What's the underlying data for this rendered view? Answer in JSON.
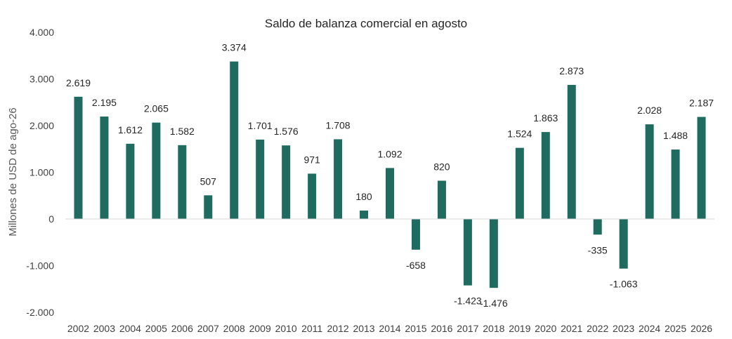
{
  "chart_data": {
    "type": "bar",
    "title": "Saldo de balanza comercial en agosto",
    "xlabel": "",
    "ylabel": "Millones de USD de ago-26",
    "ylim": [
      -2000,
      4000
    ],
    "yticks": [
      4000,
      3000,
      2000,
      1000,
      0,
      -1000,
      -2000
    ],
    "ytick_labels": [
      "4.000",
      "3.000",
      "2.000",
      "1.000",
      "0",
      "-1.000",
      "-2.000"
    ],
    "grid": false,
    "bar_color": "#1F6B5F",
    "categories": [
      "2002",
      "2003",
      "2004",
      "2005",
      "2006",
      "2007",
      "2008",
      "2009",
      "2010",
      "2011",
      "2012",
      "2013",
      "2014",
      "2015",
      "2016",
      "2017",
      "2018",
      "2019",
      "2020",
      "2021",
      "2022",
      "2023",
      "2024",
      "2025",
      "2026"
    ],
    "values": [
      2619,
      2195,
      1612,
      2065,
      1582,
      507,
      3374,
      1701,
      1576,
      971,
      1708,
      180,
      1092,
      -658,
      820,
      -1423,
      -1476,
      1524,
      1863,
      2873,
      -335,
      -1063,
      2028,
      1488,
      2187
    ],
    "value_labels": [
      "2.619",
      "2.195",
      "1.612",
      "2.065",
      "1.582",
      "507",
      "3.374",
      "1.701",
      "1.576",
      "971",
      "1.708",
      "180",
      "1.092",
      "-658",
      "820",
      "-1.423",
      "-1.476",
      "1.524",
      "1.863",
      "2.873",
      "-335",
      "-1.063",
      "2.028",
      "1.488",
      "2.187"
    ]
  }
}
